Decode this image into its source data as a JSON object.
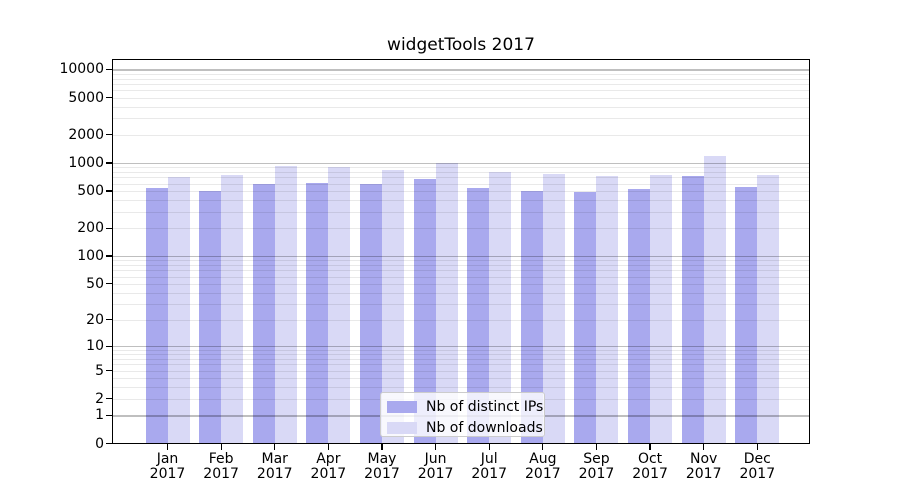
{
  "title": "widgetTools 2017",
  "chart_data": {
    "type": "bar",
    "title": "widgetTools 2017",
    "categories": [
      "Jan 2017",
      "Feb 2017",
      "Mar 2017",
      "Apr 2017",
      "May 2017",
      "Jun 2017",
      "Jul 2017",
      "Aug 2017",
      "Sep 2017",
      "Oct 2017",
      "Nov 2017",
      "Dec 2017"
    ],
    "series": [
      {
        "name": "Nb of distinct IPs",
        "color": "#a9a9ee",
        "values": [
          535,
          505,
          600,
          610,
          600,
          670,
          540,
          495,
          493,
          520,
          730,
          550
        ]
      },
      {
        "name": "Nb of downloads",
        "color": "#d9d9f6",
        "values": [
          715,
          735,
          930,
          915,
          835,
          1010,
          810,
          755,
          725,
          750,
          1180,
          750
        ]
      }
    ],
    "yscale": "log1p",
    "yticks": [
      0,
      1,
      2,
      5,
      10,
      20,
      50,
      100,
      200,
      500,
      1000,
      2000,
      5000,
      10000
    ],
    "ylim": [
      0,
      12500
    ],
    "xlabel": "",
    "ylabel": "",
    "grid": "on",
    "legend_position": "lower center"
  },
  "colors": {
    "background": "#ffffff",
    "axis": "#000000",
    "grid_major": "#c3c3c3",
    "grid_minor": "#ebebeb",
    "series1": "#a9a9ee",
    "series2": "#d9d9f6"
  }
}
